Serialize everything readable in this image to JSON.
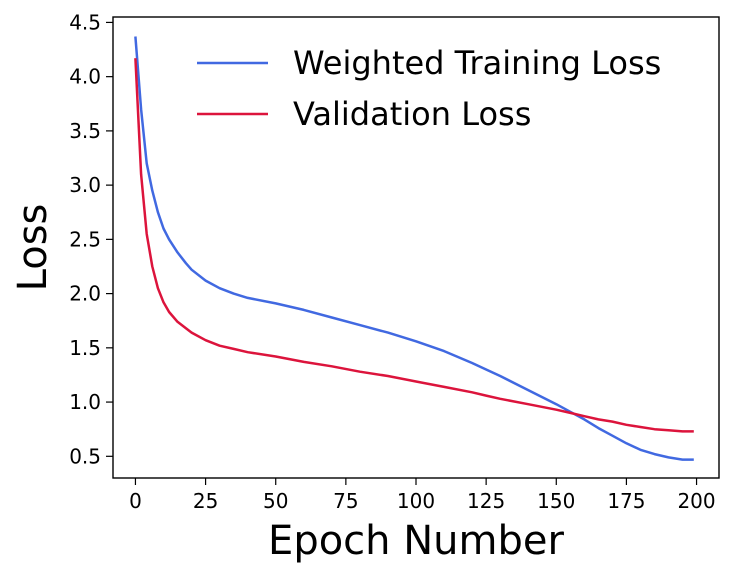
{
  "chart_data": {
    "type": "line",
    "title": "",
    "xlabel": "Epoch Number",
    "ylabel": "Loss",
    "xlim": [
      -8,
      208
    ],
    "ylim": [
      0.3,
      4.55
    ],
    "xticks": [
      0,
      25,
      50,
      75,
      100,
      125,
      150,
      175,
      200
    ],
    "yticks": [
      0.5,
      1.0,
      1.5,
      2.0,
      2.5,
      3.0,
      3.5,
      4.0,
      4.5
    ],
    "grid": false,
    "legend_position": "top-right",
    "series": [
      {
        "name": "Weighted Training Loss",
        "color": "#4169E1",
        "x": [
          0,
          2,
          4,
          6,
          8,
          10,
          12,
          15,
          18,
          20,
          25,
          30,
          35,
          40,
          50,
          60,
          70,
          80,
          90,
          100,
          110,
          120,
          125,
          130,
          140,
          150,
          155,
          160,
          165,
          170,
          175,
          180,
          185,
          190,
          195,
          199
        ],
        "y": [
          4.37,
          3.7,
          3.2,
          2.95,
          2.75,
          2.6,
          2.5,
          2.38,
          2.28,
          2.22,
          2.12,
          2.05,
          2.0,
          1.96,
          1.91,
          1.85,
          1.78,
          1.71,
          1.64,
          1.56,
          1.47,
          1.36,
          1.3,
          1.24,
          1.11,
          0.98,
          0.91,
          0.84,
          0.76,
          0.69,
          0.62,
          0.56,
          0.52,
          0.49,
          0.47,
          0.47
        ]
      },
      {
        "name": "Validation Loss",
        "color": "#DC143C",
        "x": [
          0,
          2,
          4,
          6,
          8,
          10,
          12,
          15,
          18,
          20,
          25,
          30,
          35,
          40,
          50,
          60,
          70,
          80,
          90,
          100,
          110,
          120,
          125,
          130,
          140,
          150,
          155,
          160,
          165,
          170,
          175,
          180,
          185,
          190,
          195,
          199
        ],
        "y": [
          4.17,
          3.1,
          2.55,
          2.25,
          2.05,
          1.92,
          1.83,
          1.74,
          1.68,
          1.64,
          1.57,
          1.52,
          1.49,
          1.46,
          1.42,
          1.37,
          1.33,
          1.28,
          1.24,
          1.19,
          1.14,
          1.09,
          1.06,
          1.03,
          0.98,
          0.93,
          0.9,
          0.87,
          0.84,
          0.82,
          0.79,
          0.77,
          0.75,
          0.74,
          0.73,
          0.73
        ]
      }
    ]
  }
}
